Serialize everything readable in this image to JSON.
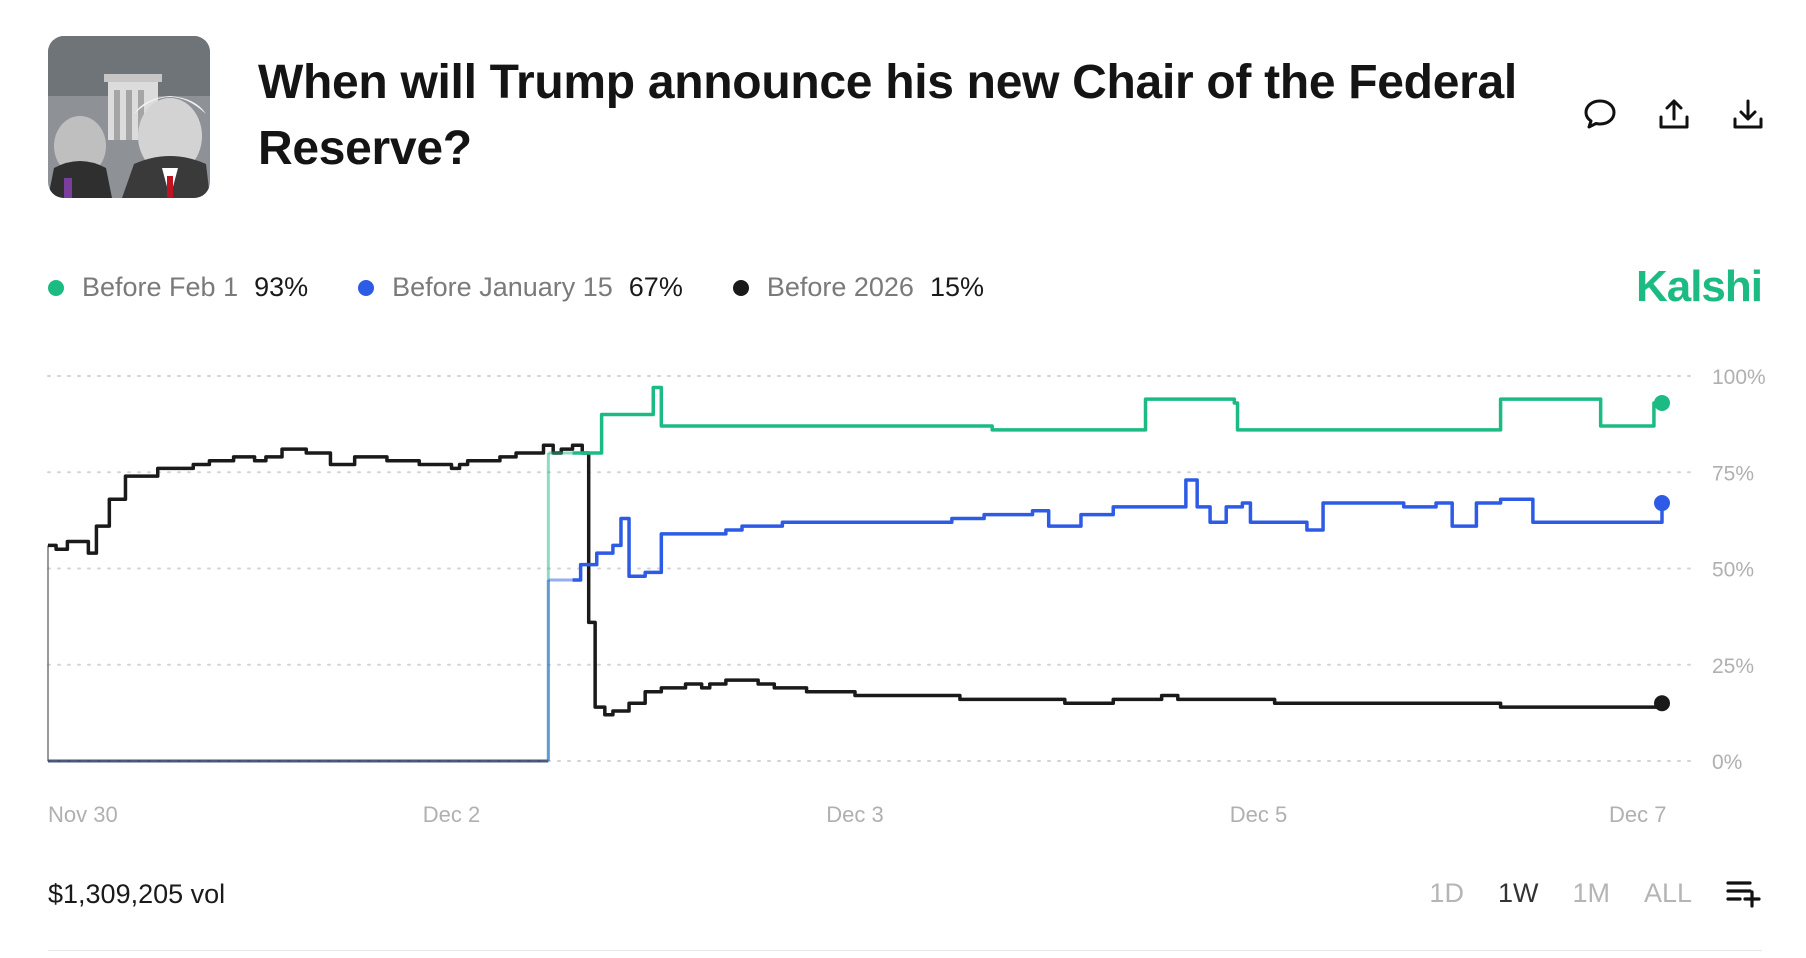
{
  "market": {
    "title": "When will Trump announce his new Chair of the Federal Reserve?",
    "brand": "Kalshi",
    "volume": "$1,309,205 vol"
  },
  "legend": [
    {
      "label": "Before Feb 1",
      "value": "93%",
      "color": "#1dbb84"
    },
    {
      "label": "Before January 15",
      "value": "67%",
      "color": "#2e5be6"
    },
    {
      "label": "Before 2026",
      "value": "15%",
      "color": "#1a1a1a"
    }
  ],
  "actions": [
    {
      "name": "comment",
      "icon": "comment-icon"
    },
    {
      "name": "share",
      "icon": "share-icon"
    },
    {
      "name": "download",
      "icon": "download-icon"
    }
  ],
  "ranges": [
    {
      "label": "1D",
      "active": false
    },
    {
      "label": "1W",
      "active": true
    },
    {
      "label": "1M",
      "active": false
    },
    {
      "label": "ALL",
      "active": false
    }
  ],
  "colors": {
    "brand": "#1dbb84",
    "grid": "#d4d4d4",
    "axis_text": "#b0b0b0"
  },
  "chart_data": {
    "type": "line",
    "title": "",
    "xlabel": "",
    "ylabel": "",
    "ylim": [
      0,
      100
    ],
    "xlim": [
      0,
      1
    ],
    "y_ticks": [
      0,
      25,
      50,
      75,
      100
    ],
    "y_tick_labels": [
      "0%",
      "25%",
      "50%",
      "75%",
      "100%"
    ],
    "x_ticks": [
      {
        "label": "Nov 30",
        "at": 0.0
      },
      {
        "label": "Dec 2",
        "at": 0.25
      },
      {
        "label": "Dec 3",
        "at": 0.5
      },
      {
        "label": "Dec 5",
        "at": 0.75
      },
      {
        "label": "Dec 7",
        "at": 0.985
      }
    ],
    "grid": true,
    "series": [
      {
        "name": "Before 2026",
        "color": "#1a1a1a",
        "current": 15,
        "points": [
          [
            0,
            56
          ],
          [
            0.005,
            55
          ],
          [
            0.012,
            57
          ],
          [
            0.025,
            54
          ],
          [
            0.03,
            61
          ],
          [
            0.038,
            68
          ],
          [
            0.048,
            74
          ],
          [
            0.068,
            76
          ],
          [
            0.09,
            77
          ],
          [
            0.1,
            78
          ],
          [
            0.115,
            79
          ],
          [
            0.128,
            78
          ],
          [
            0.135,
            79
          ],
          [
            0.145,
            81
          ],
          [
            0.16,
            80
          ],
          [
            0.175,
            77
          ],
          [
            0.19,
            79
          ],
          [
            0.21,
            78
          ],
          [
            0.23,
            77
          ],
          [
            0.24,
            77
          ],
          [
            0.25,
            76
          ],
          [
            0.255,
            77
          ],
          [
            0.26,
            78
          ],
          [
            0.27,
            78
          ],
          [
            0.28,
            79
          ],
          [
            0.29,
            80
          ],
          [
            0.3,
            80
          ],
          [
            0.307,
            82
          ],
          [
            0.313,
            80
          ],
          [
            0.318,
            81
          ],
          [
            0.325,
            82
          ],
          [
            0.331,
            80
          ],
          [
            0.335,
            36
          ],
          [
            0.339,
            14
          ],
          [
            0.345,
            12
          ],
          [
            0.35,
            13
          ],
          [
            0.36,
            15
          ],
          [
            0.37,
            18
          ],
          [
            0.38,
            19
          ],
          [
            0.395,
            20
          ],
          [
            0.405,
            19
          ],
          [
            0.41,
            20
          ],
          [
            0.42,
            21
          ],
          [
            0.44,
            20
          ],
          [
            0.45,
            19
          ],
          [
            0.47,
            18
          ],
          [
            0.5,
            17
          ],
          [
            0.52,
            17
          ],
          [
            0.55,
            17
          ],
          [
            0.565,
            16
          ],
          [
            0.6,
            16
          ],
          [
            0.62,
            16
          ],
          [
            0.63,
            15
          ],
          [
            0.66,
            16
          ],
          [
            0.69,
            17
          ],
          [
            0.7,
            16
          ],
          [
            0.72,
            16
          ],
          [
            0.74,
            16
          ],
          [
            0.76,
            15
          ],
          [
            0.8,
            15
          ],
          [
            0.83,
            15
          ],
          [
            0.86,
            15
          ],
          [
            0.88,
            15
          ],
          [
            0.9,
            14
          ],
          [
            0.92,
            14
          ],
          [
            0.95,
            14
          ],
          [
            0.97,
            14
          ],
          [
            1.0,
            15
          ]
        ]
      },
      {
        "name": "Before Feb 1",
        "color": "#1dbb84",
        "current": 93,
        "points": [
          [
            0.325,
            80
          ],
          [
            0.335,
            80
          ],
          [
            0.343,
            90
          ],
          [
            0.37,
            90
          ],
          [
            0.375,
            97
          ],
          [
            0.38,
            87
          ],
          [
            0.4,
            87
          ],
          [
            0.43,
            87
          ],
          [
            0.5,
            87
          ],
          [
            0.56,
            87
          ],
          [
            0.585,
            86
          ],
          [
            0.6,
            86
          ],
          [
            0.635,
            86
          ],
          [
            0.665,
            86
          ],
          [
            0.68,
            94
          ],
          [
            0.7,
            94
          ],
          [
            0.735,
            93
          ],
          [
            0.737,
            86
          ],
          [
            0.77,
            86
          ],
          [
            0.8,
            86
          ],
          [
            0.83,
            86
          ],
          [
            0.86,
            86
          ],
          [
            0.9,
            94
          ],
          [
            0.95,
            94
          ],
          [
            0.962,
            87
          ],
          [
            0.99,
            87
          ],
          [
            0.995,
            93
          ],
          [
            1.0,
            93
          ]
        ]
      },
      {
        "name": "Before January 15",
        "color": "#2e5be6",
        "current": 67,
        "points": [
          [
            0.325,
            47
          ],
          [
            0.33,
            51
          ],
          [
            0.34,
            54
          ],
          [
            0.35,
            56
          ],
          [
            0.355,
            63
          ],
          [
            0.36,
            48
          ],
          [
            0.37,
            49
          ],
          [
            0.38,
            59
          ],
          [
            0.4,
            59
          ],
          [
            0.41,
            59
          ],
          [
            0.42,
            60
          ],
          [
            0.43,
            61
          ],
          [
            0.45,
            61
          ],
          [
            0.455,
            62
          ],
          [
            0.48,
            62
          ],
          [
            0.5,
            62
          ],
          [
            0.52,
            62
          ],
          [
            0.56,
            63
          ],
          [
            0.58,
            64
          ],
          [
            0.6,
            64
          ],
          [
            0.61,
            65
          ],
          [
            0.62,
            61
          ],
          [
            0.64,
            64
          ],
          [
            0.66,
            66
          ],
          [
            0.68,
            66
          ],
          [
            0.7,
            66
          ],
          [
            0.705,
            73
          ],
          [
            0.712,
            66
          ],
          [
            0.72,
            62
          ],
          [
            0.73,
            66
          ],
          [
            0.74,
            67
          ],
          [
            0.745,
            62
          ],
          [
            0.76,
            62
          ],
          [
            0.78,
            60
          ],
          [
            0.79,
            67
          ],
          [
            0.8,
            67
          ],
          [
            0.82,
            67
          ],
          [
            0.84,
            66
          ],
          [
            0.86,
            67
          ],
          [
            0.87,
            61
          ],
          [
            0.885,
            67
          ],
          [
            0.9,
            68
          ],
          [
            0.92,
            62
          ],
          [
            0.95,
            62
          ],
          [
            0.975,
            62
          ],
          [
            0.99,
            62
          ],
          [
            1.0,
            67
          ]
        ]
      }
    ],
    "pre_listing": [
      {
        "color": "#2e5be6",
        "value": 0,
        "from": 0,
        "to": 0.31
      },
      {
        "color": "#1a1a1a",
        "value": 0,
        "from": 0,
        "to": 0.31
      }
    ]
  }
}
